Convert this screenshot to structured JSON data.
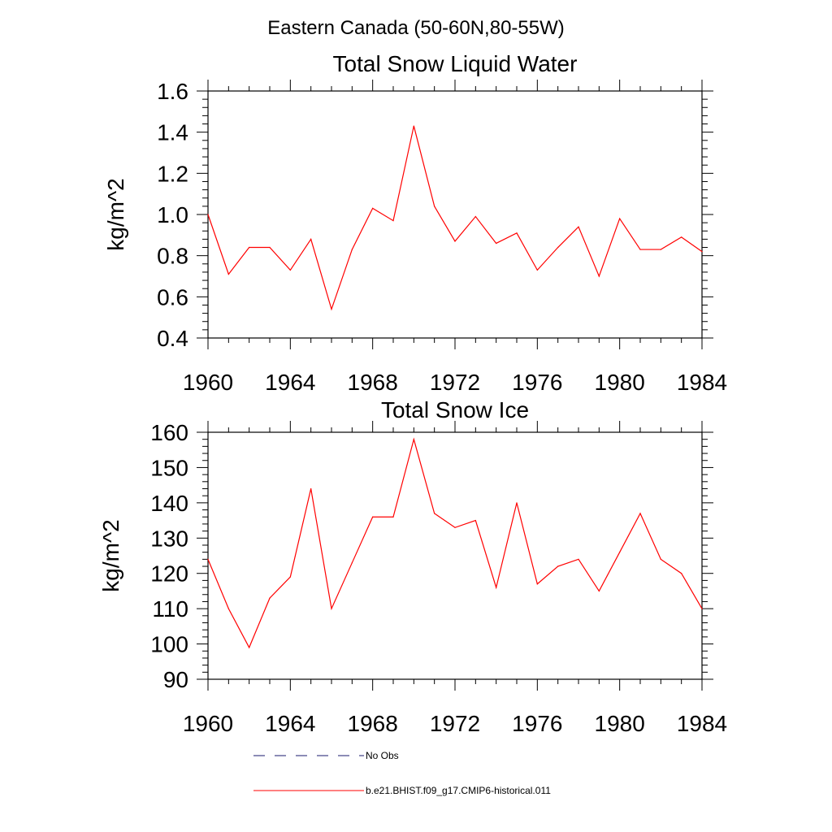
{
  "figure_title": "Eastern Canada (50-60N,80-55W)",
  "chart_data": [
    {
      "type": "line",
      "title": "Total Snow Liquid Water",
      "xlabel": "",
      "ylabel": "kg/m^2",
      "xlim": [
        1960,
        1984
      ],
      "ylim": [
        0.4,
        1.6
      ],
      "xticks": [
        1960,
        1964,
        1968,
        1972,
        1976,
        1980,
        1984
      ],
      "yticks": [
        0.4,
        0.6,
        0.8,
        1.0,
        1.2,
        1.4,
        1.6
      ],
      "ytick_labels": [
        "0.4",
        "0.6",
        "0.8",
        "1.0",
        "1.2",
        "1.4",
        "1.6"
      ],
      "grid": false,
      "x": [
        1960,
        1961,
        1962,
        1963,
        1964,
        1965,
        1966,
        1967,
        1968,
        1969,
        1970,
        1971,
        1972,
        1973,
        1974,
        1975,
        1976,
        1977,
        1978,
        1979,
        1980,
        1981,
        1982,
        1983,
        1984
      ],
      "series": [
        {
          "name": "b.e21.BHIST.f09_g17.CMIP6-historical.011",
          "color": "#ff0000",
          "values": [
            1.0,
            0.71,
            0.84,
            0.84,
            0.73,
            0.88,
            0.54,
            0.83,
            1.03,
            0.97,
            1.43,
            1.04,
            0.87,
            0.99,
            0.86,
            0.91,
            0.73,
            0.84,
            0.94,
            0.7,
            0.98,
            0.83,
            0.83,
            0.89,
            0.82
          ]
        }
      ]
    },
    {
      "type": "line",
      "title": "Total Snow Ice",
      "xlabel": "",
      "ylabel": "kg/m^2",
      "xlim": [
        1960,
        1984
      ],
      "ylim": [
        90,
        160
      ],
      "xticks": [
        1960,
        1964,
        1968,
        1972,
        1976,
        1980,
        1984
      ],
      "yticks": [
        90,
        100,
        110,
        120,
        130,
        140,
        150,
        160
      ],
      "ytick_labels": [
        "90",
        "100",
        "110",
        "120",
        "130",
        "140",
        "150",
        "160"
      ],
      "grid": false,
      "x": [
        1960,
        1961,
        1962,
        1963,
        1964,
        1965,
        1966,
        1967,
        1968,
        1969,
        1970,
        1971,
        1972,
        1973,
        1974,
        1975,
        1976,
        1977,
        1978,
        1979,
        1980,
        1981,
        1982,
        1983,
        1984
      ],
      "series": [
        {
          "name": "b.e21.BHIST.f09_g17.CMIP6-historical.011",
          "color": "#ff0000",
          "values": [
            124,
            110,
            99,
            113,
            119,
            144,
            110,
            123,
            136,
            136,
            158,
            137,
            133,
            135,
            116,
            140,
            117,
            122,
            124,
            115,
            126,
            137,
            124,
            120,
            110
          ]
        }
      ]
    }
  ],
  "legend": {
    "placement": "bottom-center",
    "items": [
      {
        "label": "No Obs",
        "style": "dashed",
        "color": "#1a1a6e"
      },
      {
        "label": "b.e21.BHIST.f09_g17.CMIP6-historical.011",
        "style": "solid",
        "color": "#ff0000"
      }
    ]
  }
}
